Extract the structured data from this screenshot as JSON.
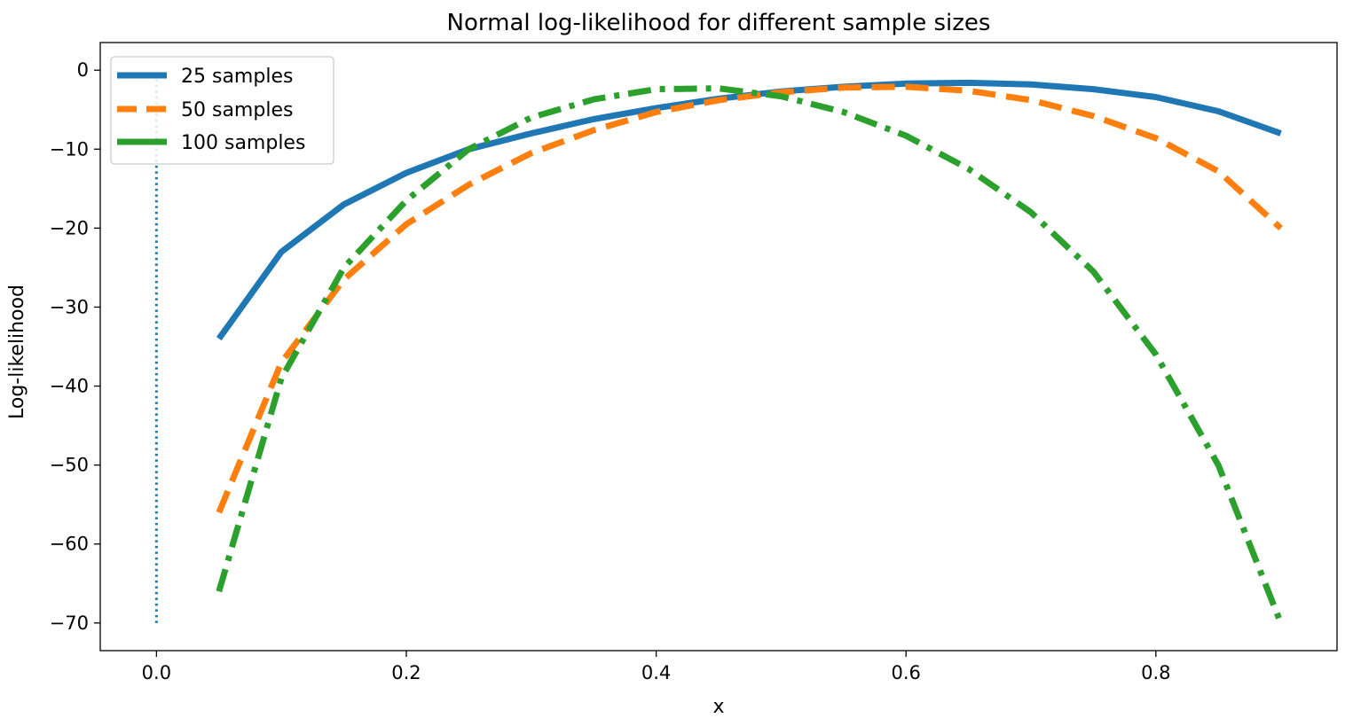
{
  "chart_data": {
    "type": "line",
    "title": "Normal log-likelihood for different sample sizes",
    "xlabel": "x",
    "ylabel": "Log-likelihood",
    "xlim": [
      -0.045,
      0.945
    ],
    "ylim": [
      -73.5,
      3.5
    ],
    "xticks": [
      0.0,
      0.2,
      0.4,
      0.6,
      0.8
    ],
    "xtick_labels": [
      "0.0",
      "0.2",
      "0.4",
      "0.6",
      "0.8"
    ],
    "yticks": [
      0,
      -10,
      -20,
      -30,
      -40,
      -50,
      -60,
      -70
    ],
    "ytick_labels": [
      "0",
      "−10",
      "−20",
      "−30",
      "−40",
      "−50",
      "−60",
      "−70"
    ],
    "grid": false,
    "legend_position": "top-left",
    "vertical_line": {
      "x": 0.0,
      "y_from": -70,
      "y_to": 0,
      "color": "#1f77b4",
      "style": "dotted"
    },
    "series": [
      {
        "name": "25 samples",
        "color": "#1f77b4",
        "style": "solid",
        "x": [
          0.05,
          0.1,
          0.15,
          0.2,
          0.25,
          0.3,
          0.35,
          0.4,
          0.45,
          0.5,
          0.55,
          0.6,
          0.65,
          0.7,
          0.75,
          0.8,
          0.85,
          0.9
        ],
        "y": [
          -34,
          -23,
          -17,
          -13,
          -10,
          -8,
          -6.2,
          -4.8,
          -3.6,
          -2.7,
          -2.1,
          -1.7,
          -1.6,
          -1.8,
          -2.4,
          -3.4,
          -5.2,
          -8.0
        ]
      },
      {
        "name": "50 samples",
        "color": "#ff7f0e",
        "style": "dashed",
        "x": [
          0.05,
          0.1,
          0.15,
          0.2,
          0.25,
          0.3,
          0.35,
          0.4,
          0.45,
          0.5,
          0.55,
          0.6,
          0.65,
          0.7,
          0.75,
          0.8,
          0.85,
          0.9
        ],
        "y": [
          -56,
          -37,
          -26.5,
          -19.5,
          -14.5,
          -10.5,
          -7.6,
          -5.3,
          -3.8,
          -2.8,
          -2.2,
          -2.1,
          -2.6,
          -3.8,
          -5.8,
          -8.6,
          -12.8,
          -20
        ]
      },
      {
        "name": "100 samples",
        "color": "#2ca02c",
        "style": "dashdot",
        "x": [
          0.05,
          0.1,
          0.15,
          0.2,
          0.25,
          0.3,
          0.35,
          0.4,
          0.45,
          0.5,
          0.55,
          0.6,
          0.65,
          0.7,
          0.75,
          0.8,
          0.85,
          0.9
        ],
        "y": [
          -66,
          -39,
          -25,
          -16.5,
          -10,
          -6,
          -3.7,
          -2.4,
          -2.3,
          -3.3,
          -5.3,
          -8.3,
          -12.5,
          -18,
          -25.5,
          -36,
          -50,
          -70
        ]
      }
    ]
  }
}
